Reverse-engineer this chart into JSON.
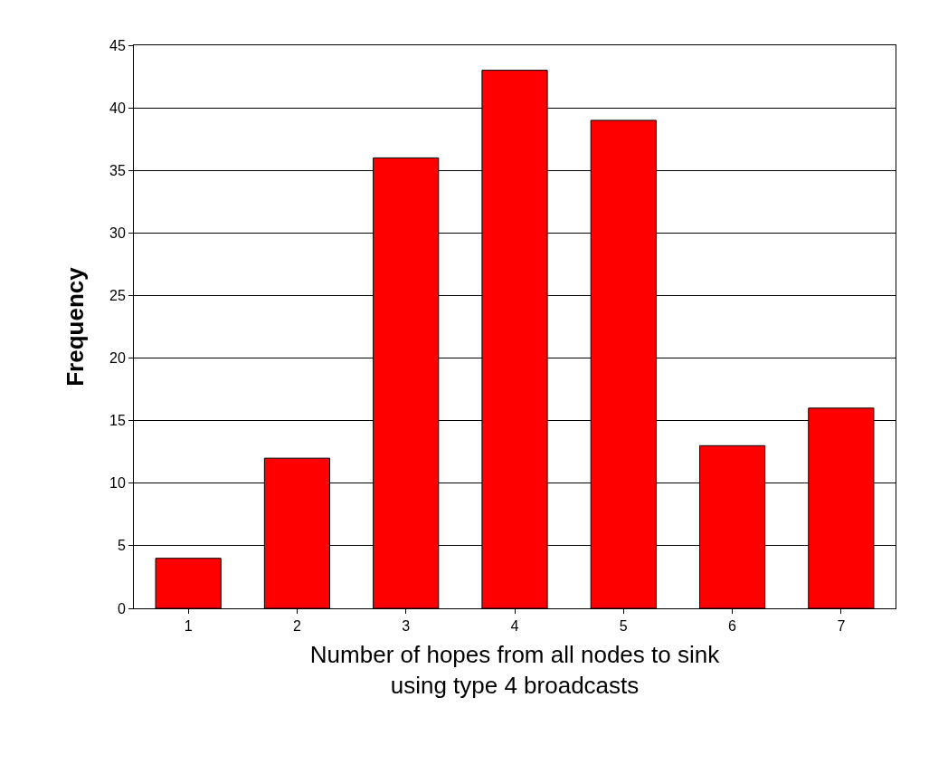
{
  "chart_data": {
    "type": "bar",
    "xlabel": "Number of hopes from all nodes to sink using type 4 broadcasts",
    "ylabel": "Frequency",
    "categories": [
      "1",
      "2",
      "3",
      "4",
      "5",
      "6",
      "7"
    ],
    "values": [
      4,
      12,
      36,
      43,
      39,
      13,
      16
    ],
    "color": "#ff0000",
    "ylim": [
      0,
      45
    ],
    "yticks": [
      0,
      5,
      10,
      15,
      20,
      25,
      30,
      35,
      40,
      45
    ],
    "grid": "y",
    "legend": false
  }
}
